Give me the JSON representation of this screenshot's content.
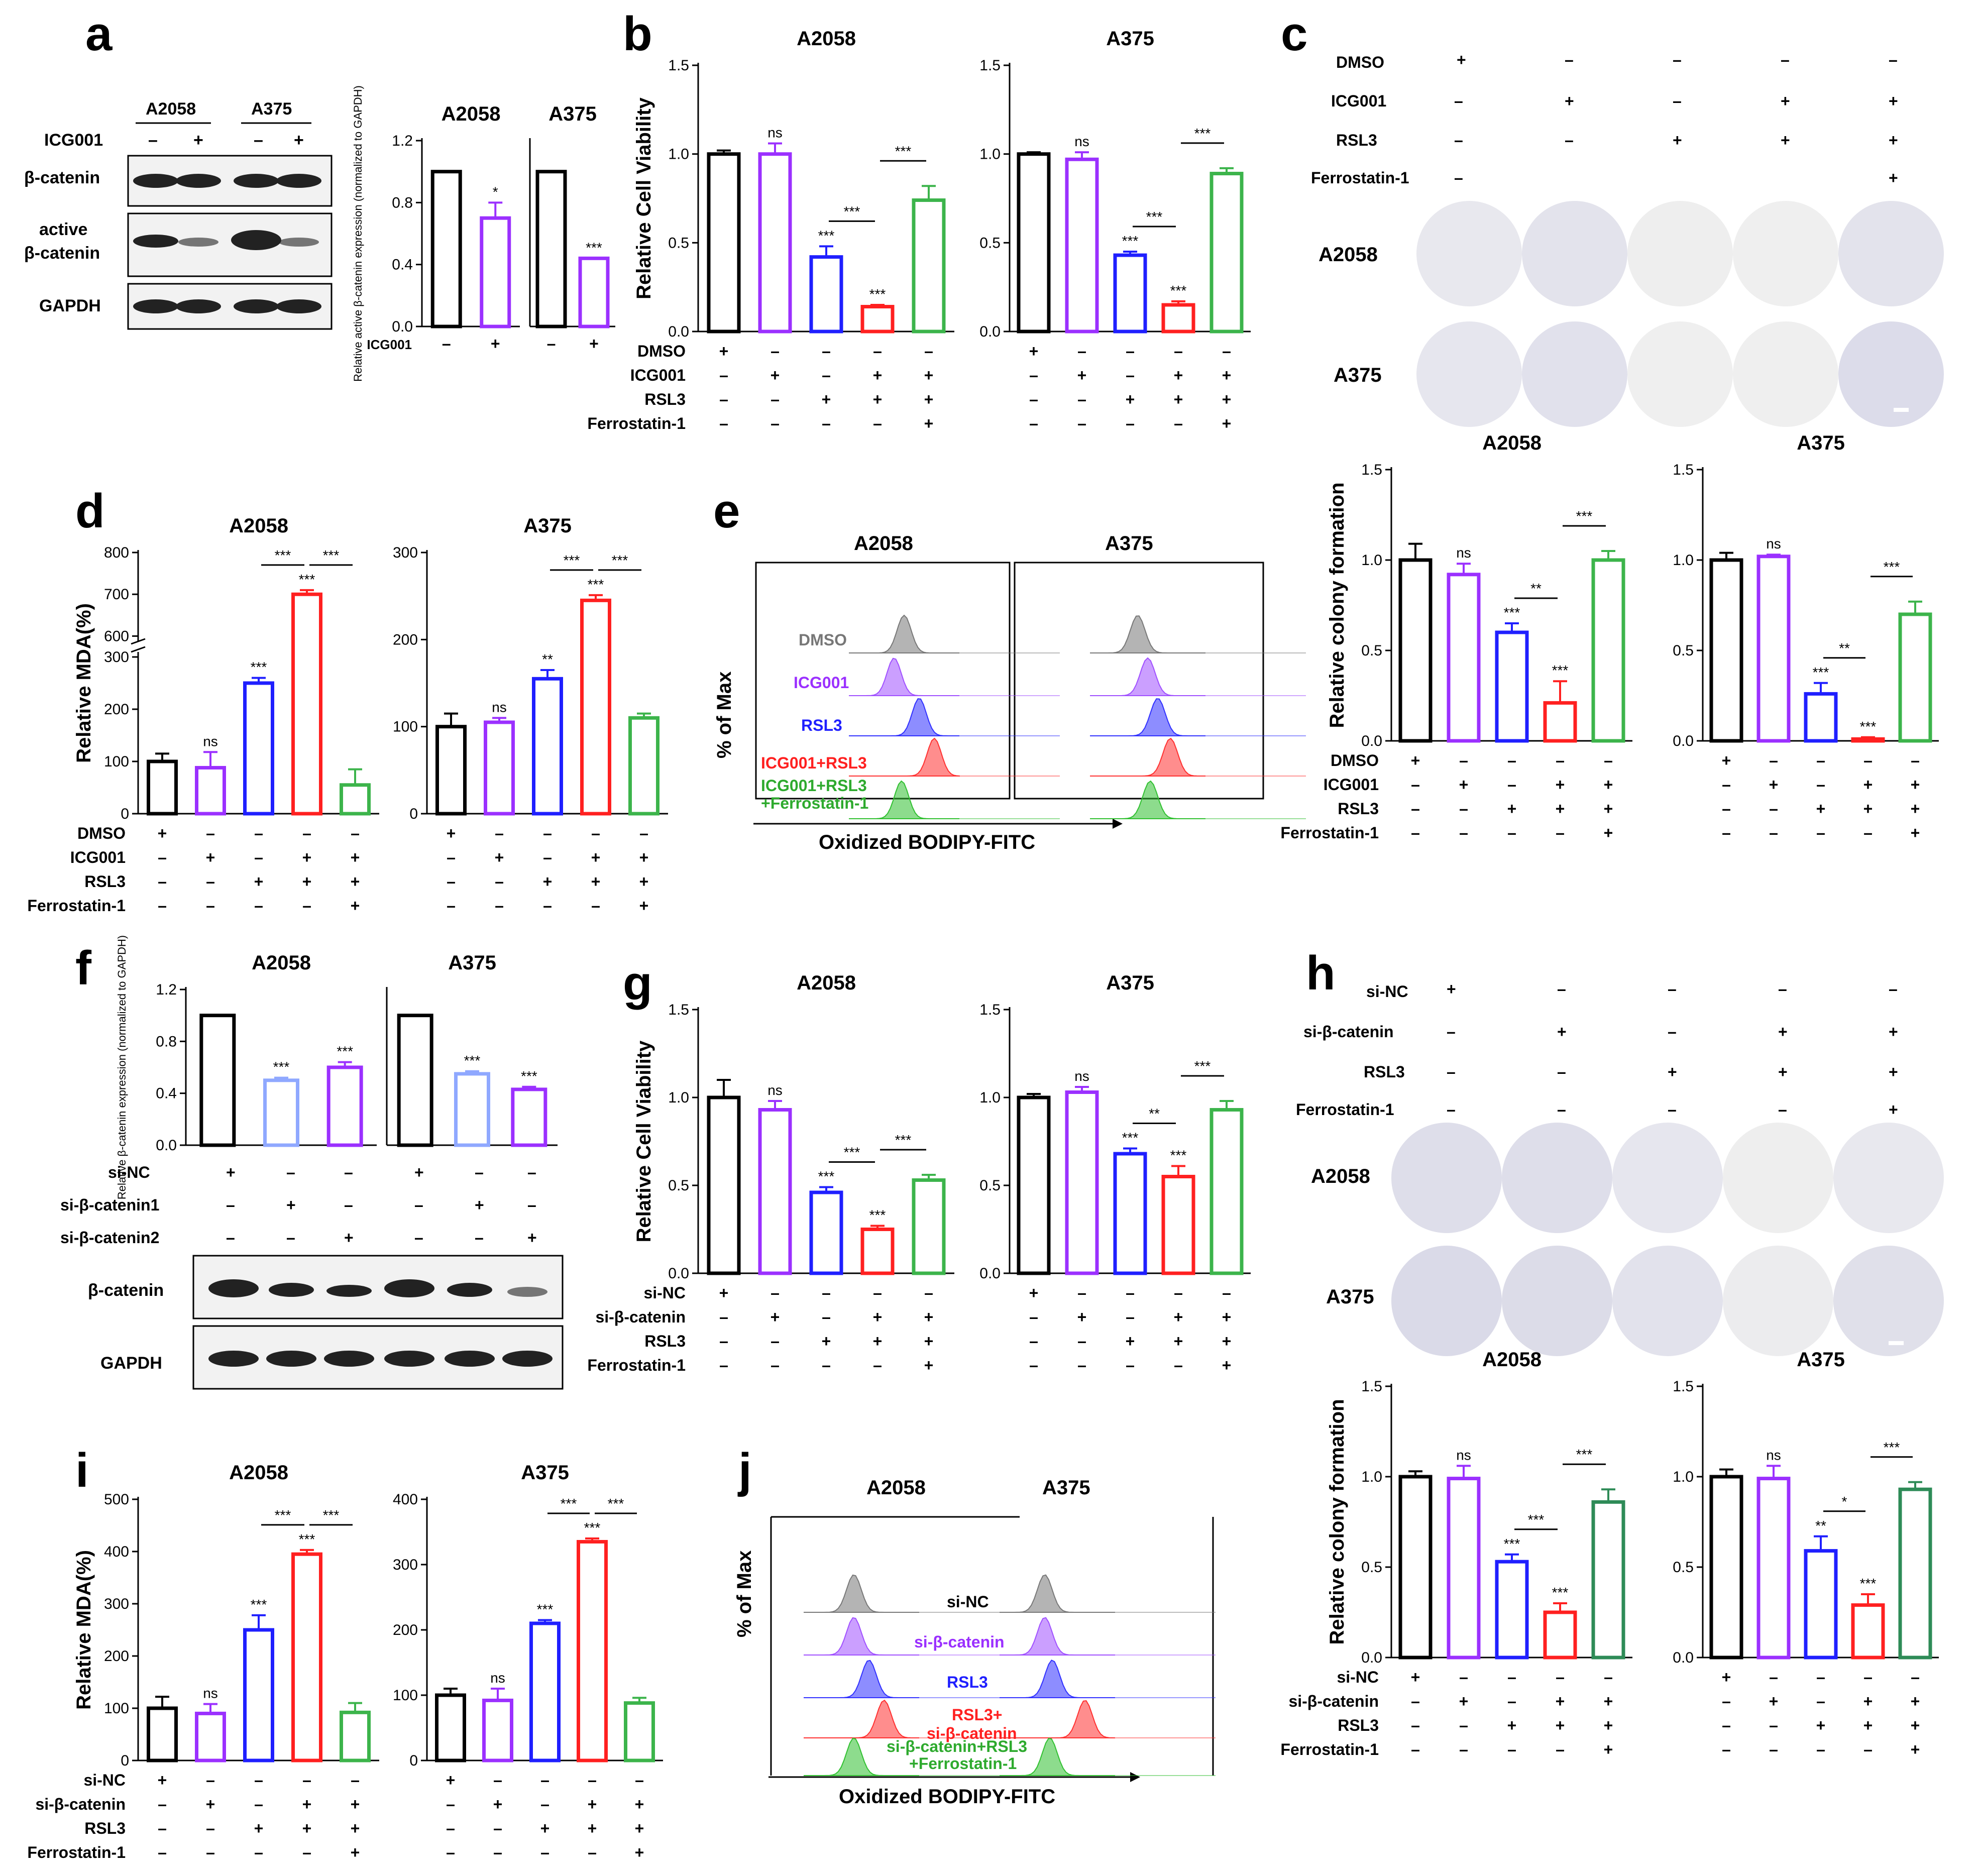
{
  "colors": {
    "black": "#000000",
    "purple": "#9b30ff",
    "blue": "#1f1fff",
    "red": "#ff2020",
    "green": "#3cb44b",
    "darkgreen": "#2e8b57",
    "lightblue": "#8fa8ff"
  },
  "condition_labels": {
    "dmso": "DMSO",
    "icg": "ICG001",
    "rsl3": "RSL3",
    "fer": "Ferrostatin-1",
    "sinc": "si-NC",
    "sibc": "si-β-catenin",
    "sibc1": "si-β-catenin1",
    "sibc2": "si-β-catenin2"
  },
  "panel_letters": [
    "a",
    "b",
    "c",
    "d",
    "e",
    "f",
    "g",
    "h",
    "i",
    "j"
  ],
  "panel_a": {
    "lane_groups": [
      "A2058",
      "A375"
    ],
    "icg_row": {
      "label": "ICG001",
      "signs": [
        "–",
        "+",
        "–",
        "+"
      ]
    },
    "bands": [
      "β-catenin",
      "active\nβ-catenin",
      "GAPDH"
    ],
    "bar_ylabel": "Relative active β-catenin expression (normalized to GAPDH)"
  },
  "panel_e": {
    "cells": [
      "A2058",
      "A375"
    ],
    "ylabel": "% of Max",
    "xlabel": "Oxidized BODIPY-FITC",
    "legend": [
      "DMSO",
      "ICG001",
      "RSL3",
      "ICG001+RSL3",
      "ICG001+RSL3\n+Ferrostatin-1"
    ]
  },
  "panel_j": {
    "cells": [
      "A2058",
      "A375"
    ],
    "ylabel": "% of Max",
    "xlabel": "Oxidized BODIPY-FITC",
    "legend": [
      "si-NC",
      "si-β-catenin",
      "RSL3",
      "RSL3+\nsi-β-catenin",
      "si-β-catenin+RSL3\n+Ferrostatin-1"
    ]
  },
  "panel_f_wb": {
    "bands": [
      "β-catenin",
      "GAPDH"
    ]
  },
  "chart_data": [
    {
      "id": "a1",
      "type": "bar",
      "title": "A2058",
      "ylabel": "Relative active β-catenin expression (normalized to GAPDH)",
      "ylim": [
        0,
        1.2
      ],
      "yticks": [
        0.0,
        0.4,
        0.8,
        1.2
      ],
      "values": [
        1.0,
        0.7
      ],
      "errors": [
        0,
        0.1
      ],
      "sig": [
        "",
        "*"
      ],
      "categories": [
        "–",
        "+"
      ],
      "xrow": "ICG001"
    },
    {
      "id": "a2",
      "type": "bar",
      "title": "A375",
      "ylim": [
        0,
        1.2
      ],
      "values": [
        1.0,
        0.44
      ],
      "errors": [
        0,
        0
      ],
      "sig": [
        "",
        "***"
      ],
      "categories": [
        "–",
        "+"
      ]
    },
    {
      "id": "b1",
      "type": "bar",
      "title": "A2058",
      "ylabel": "Relative Cell Viability",
      "ylim": [
        0,
        1.5
      ],
      "yticks": [
        0.0,
        0.5,
        1.0,
        1.5
      ],
      "values": [
        1.0,
        1.0,
        0.42,
        0.14,
        0.74
      ],
      "errors": [
        0.02,
        0.06,
        0.06,
        0.01,
        0.08
      ],
      "sig": [
        "",
        "ns",
        "***",
        "***",
        ""
      ],
      "brackets": [
        {
          "from": 2,
          "to": 3,
          "label": "***"
        },
        {
          "from": 3,
          "to": 4,
          "label": "***"
        }
      ]
    },
    {
      "id": "b2",
      "type": "bar",
      "title": "A375",
      "ylim": [
        0,
        1.5
      ],
      "yticks": [
        0.0,
        0.5,
        1.0,
        1.5
      ],
      "values": [
        1.0,
        0.97,
        0.43,
        0.15,
        0.89
      ],
      "errors": [
        0.01,
        0.04,
        0.02,
        0.02,
        0.03
      ],
      "sig": [
        "",
        "ns",
        "***",
        "***",
        ""
      ],
      "brackets": [
        {
          "from": 2,
          "to": 3,
          "label": "***"
        },
        {
          "from": 3,
          "to": 4,
          "label": "***"
        }
      ]
    },
    {
      "id": "c1",
      "type": "bar",
      "title": "A2058",
      "ylabel": "Relative colony formation",
      "ylim": [
        0,
        1.5
      ],
      "yticks": [
        0.0,
        0.5,
        1.0,
        1.5
      ],
      "values": [
        1.0,
        0.92,
        0.6,
        0.21,
        1.0
      ],
      "errors": [
        0.09,
        0.06,
        0.05,
        0.12,
        0.05
      ],
      "sig": [
        "",
        "ns",
        "***",
        "***",
        ""
      ],
      "brackets": [
        {
          "from": 2,
          "to": 3,
          "label": "**"
        },
        {
          "from": 3,
          "to": 4,
          "label": "***"
        }
      ]
    },
    {
      "id": "c2",
      "type": "bar",
      "title": "A375",
      "ylim": [
        0,
        1.5
      ],
      "yticks": [
        0.0,
        0.5,
        1.0,
        1.5
      ],
      "values": [
        1.0,
        1.02,
        0.26,
        0.01,
        0.7
      ],
      "errors": [
        0.04,
        0.01,
        0.06,
        0.01,
        0.07
      ],
      "sig": [
        "",
        "ns",
        "***",
        "***",
        ""
      ],
      "brackets": [
        {
          "from": 2,
          "to": 3,
          "label": "**"
        },
        {
          "from": 3,
          "to": 4,
          "label": "***"
        }
      ]
    },
    {
      "id": "d1",
      "type": "bar",
      "title": "A2058",
      "ylabel": "Relative MDA(%)",
      "axis_break": [
        300,
        600
      ],
      "yticks": [
        0,
        100,
        200,
        300,
        600,
        700,
        800
      ],
      "values": [
        100,
        88,
        250,
        700,
        55
      ],
      "errors": [
        15,
        30,
        10,
        10,
        30
      ],
      "sig": [
        "",
        "ns",
        "***",
        "***",
        ""
      ],
      "brackets": [
        {
          "from": 2,
          "to": 3,
          "label": "***"
        },
        {
          "from": 3,
          "to": 4,
          "label": "***"
        }
      ]
    },
    {
      "id": "d2",
      "type": "bar",
      "title": "A375",
      "ylim": [
        0,
        300
      ],
      "yticks": [
        0,
        100,
        200,
        300
      ],
      "values": [
        100,
        105,
        155,
        245,
        110
      ],
      "errors": [
        15,
        5,
        10,
        6,
        5
      ],
      "sig": [
        "",
        "ns",
        "**",
        "***",
        ""
      ],
      "brackets": [
        {
          "from": 2,
          "to": 3,
          "label": "***"
        },
        {
          "from": 3,
          "to": 4,
          "label": "***"
        }
      ]
    },
    {
      "id": "f1",
      "type": "bar",
      "title": "A2058",
      "ylabel": "Relative β-catenin expression (normalized to GAPDH)",
      "ylim": [
        0,
        1.2
      ],
      "yticks": [
        0.0,
        0.4,
        0.8,
        1.2
      ],
      "values": [
        1.0,
        0.5,
        0.6
      ],
      "errors": [
        0,
        0.02,
        0.04
      ],
      "sig": [
        "",
        "***",
        "***"
      ]
    },
    {
      "id": "f2",
      "type": "bar",
      "title": "A375",
      "ylim": [
        0,
        1.2
      ],
      "values": [
        1.0,
        0.55,
        0.43
      ],
      "errors": [
        0,
        0.02,
        0.02
      ],
      "sig": [
        "",
        "***",
        "***"
      ]
    },
    {
      "id": "g1",
      "type": "bar",
      "title": "A2058",
      "ylabel": "Relative Cell Viability",
      "ylim": [
        0,
        1.5
      ],
      "yticks": [
        0.0,
        0.5,
        1.0,
        1.5
      ],
      "values": [
        1.0,
        0.93,
        0.46,
        0.25,
        0.53
      ],
      "errors": [
        0.1,
        0.05,
        0.03,
        0.02,
        0.03
      ],
      "sig": [
        "",
        "ns",
        "***",
        "***",
        ""
      ],
      "brackets": [
        {
          "from": 2,
          "to": 3,
          "label": "***"
        },
        {
          "from": 3,
          "to": 4,
          "label": "***"
        }
      ]
    },
    {
      "id": "g2",
      "type": "bar",
      "title": "A375",
      "ylim": [
        0,
        1.5
      ],
      "yticks": [
        0.0,
        0.5,
        1.0,
        1.5
      ],
      "values": [
        1.0,
        1.03,
        0.68,
        0.55,
        0.93
      ],
      "errors": [
        0.02,
        0.03,
        0.03,
        0.06,
        0.05
      ],
      "sig": [
        "",
        "ns",
        "***",
        "***",
        ""
      ],
      "brackets": [
        {
          "from": 2,
          "to": 3,
          "label": "**"
        },
        {
          "from": 3,
          "to": 4,
          "label": "***"
        }
      ]
    },
    {
      "id": "h1",
      "type": "bar",
      "title": "A2058",
      "ylabel": "Relative colony formation",
      "ylim": [
        0,
        1.5
      ],
      "yticks": [
        0.0,
        0.5,
        1.0,
        1.5
      ],
      "values": [
        1.0,
        0.99,
        0.53,
        0.25,
        0.86
      ],
      "errors": [
        0.03,
        0.07,
        0.04,
        0.05,
        0.07
      ],
      "sig": [
        "",
        "ns",
        "***",
        "***",
        ""
      ],
      "brackets": [
        {
          "from": 2,
          "to": 3,
          "label": "***"
        },
        {
          "from": 3,
          "to": 4,
          "label": "***"
        }
      ]
    },
    {
      "id": "h2",
      "type": "bar",
      "title": "A375",
      "ylim": [
        0,
        1.5
      ],
      "yticks": [
        0.0,
        0.5,
        1.0,
        1.5
      ],
      "values": [
        1.0,
        0.99,
        0.59,
        0.29,
        0.93
      ],
      "errors": [
        0.04,
        0.07,
        0.08,
        0.06,
        0.04
      ],
      "sig": [
        "",
        "ns",
        "**",
        "***",
        ""
      ],
      "brackets": [
        {
          "from": 2,
          "to": 3,
          "label": "*"
        },
        {
          "from": 3,
          "to": 4,
          "label": "***"
        }
      ]
    },
    {
      "id": "i1",
      "type": "bar",
      "title": "A2058",
      "ylabel": "Relative MDA(%)",
      "ylim": [
        0,
        500
      ],
      "yticks": [
        0,
        100,
        200,
        300,
        400,
        500
      ],
      "values": [
        100,
        90,
        250,
        395,
        92
      ],
      "errors": [
        22,
        18,
        28,
        8,
        18
      ],
      "sig": [
        "",
        "ns",
        "***",
        "***",
        ""
      ],
      "brackets": [
        {
          "from": 2,
          "to": 3,
          "label": "***"
        },
        {
          "from": 3,
          "to": 4,
          "label": "***"
        }
      ]
    },
    {
      "id": "i2",
      "type": "bar",
      "title": "A375",
      "ylim": [
        0,
        400
      ],
      "yticks": [
        0,
        100,
        200,
        300,
        400
      ],
      "values": [
        100,
        92,
        210,
        335,
        88
      ],
      "errors": [
        10,
        18,
        5,
        5,
        8
      ],
      "sig": [
        "",
        "ns",
        "***",
        "***",
        ""
      ],
      "brackets": [
        {
          "from": 2,
          "to": 3,
          "label": "***"
        },
        {
          "from": 3,
          "to": 4,
          "label": "***"
        }
      ]
    }
  ]
}
